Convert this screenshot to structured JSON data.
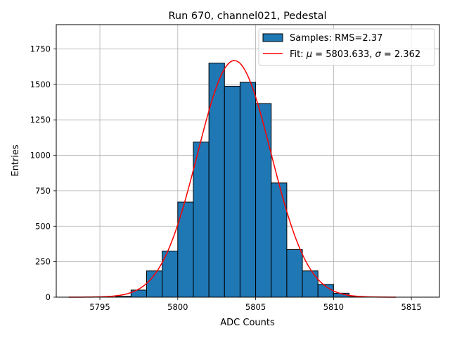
{
  "chart_data": {
    "type": "bar",
    "title": "Run 670, channel021, Pedestal",
    "xlabel": "ADC Counts",
    "ylabel": "Entries",
    "xlim": [
      5792.2,
      5816.8
    ],
    "ylim": [
      0,
      1921
    ],
    "xticks": [
      5795,
      5800,
      5805,
      5810,
      5815
    ],
    "xtick_labels": [
      "5795",
      "5800",
      "5805",
      "5810",
      "5815"
    ],
    "yticks": [
      0,
      250,
      500,
      750,
      1000,
      1250,
      1500,
      1750
    ],
    "ytick_labels": [
      "0",
      "250",
      "500",
      "750",
      "1000",
      "1250",
      "1500",
      "1750"
    ],
    "grid": true,
    "legend_position": "top-right",
    "bins": [
      {
        "x0": 5796,
        "x1": 5797,
        "count": 6
      },
      {
        "x0": 5797,
        "x1": 5798,
        "count": 50
      },
      {
        "x0": 5798,
        "x1": 5799,
        "count": 185
      },
      {
        "x0": 5799,
        "x1": 5800,
        "count": 325
      },
      {
        "x0": 5800,
        "x1": 5801,
        "count": 670
      },
      {
        "x0": 5801,
        "x1": 5802,
        "count": 1093
      },
      {
        "x0": 5802,
        "x1": 5803,
        "count": 1650
      },
      {
        "x0": 5803,
        "x1": 5804,
        "count": 1487
      },
      {
        "x0": 5804,
        "x1": 5805,
        "count": 1515
      },
      {
        "x0": 5805,
        "x1": 5806,
        "count": 1365
      },
      {
        "x0": 5806,
        "x1": 5807,
        "count": 805
      },
      {
        "x0": 5807,
        "x1": 5808,
        "count": 335
      },
      {
        "x0": 5808,
        "x1": 5809,
        "count": 185
      },
      {
        "x0": 5809,
        "x1": 5810,
        "count": 90
      },
      {
        "x0": 5810,
        "x1": 5811,
        "count": 28
      },
      {
        "x0": 5811,
        "x1": 5812,
        "count": 3
      }
    ],
    "fit": {
      "mu": 5803.633,
      "sigma": 2.362,
      "peak": 1668,
      "x_range": [
        5793,
        5814
      ]
    },
    "legend": [
      {
        "label": "Samples: RMS=2.37",
        "kind": "patch"
      },
      {
        "label_prefix": "Fit: ",
        "mu_symbol": "μ",
        "mu_text": " = 5803.633, ",
        "sigma_symbol": "σ",
        "sigma_text": " = 2.362",
        "kind": "line"
      }
    ],
    "colors": {
      "bar_fill": "#1f77b4",
      "bar_edge": "#000000",
      "fit_line": "#ff0000",
      "grid": "#b0b0b0"
    }
  }
}
